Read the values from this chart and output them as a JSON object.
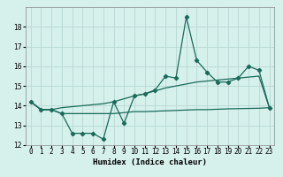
{
  "xlabel": "Humidex (Indice chaleur)",
  "x": [
    0,
    1,
    2,
    3,
    4,
    5,
    6,
    7,
    8,
    9,
    10,
    11,
    12,
    13,
    14,
    15,
    16,
    17,
    18,
    19,
    20,
    21,
    22,
    23
  ],
  "line1": [
    14.2,
    13.8,
    13.8,
    13.6,
    12.6,
    12.6,
    12.6,
    12.3,
    14.2,
    13.1,
    14.5,
    14.6,
    14.8,
    15.5,
    15.4,
    18.5,
    16.3,
    15.7,
    15.2,
    15.2,
    15.4,
    16.0,
    15.8,
    13.9
  ],
  "line2": [
    14.2,
    13.8,
    13.8,
    13.9,
    13.95,
    14.0,
    14.05,
    14.1,
    14.2,
    14.35,
    14.5,
    14.6,
    14.75,
    14.9,
    15.0,
    15.1,
    15.2,
    15.25,
    15.3,
    15.35,
    15.4,
    15.45,
    15.5,
    13.9
  ],
  "line3": [
    14.2,
    13.8,
    13.8,
    13.6,
    13.6,
    13.6,
    13.6,
    13.6,
    13.6,
    13.65,
    13.7,
    13.7,
    13.72,
    13.74,
    13.76,
    13.78,
    13.8,
    13.8,
    13.82,
    13.84,
    13.85,
    13.86,
    13.87,
    13.9
  ],
  "line_color": "#1a6b5a",
  "bg_color": "#d6f0ec",
  "grid_color": "#b8d8d4",
  "ylim": [
    12,
    19
  ],
  "yticks": [
    12,
    13,
    14,
    15,
    16,
    17,
    18
  ],
  "label_fontsize": 6.5,
  "tick_fontsize": 5.5
}
